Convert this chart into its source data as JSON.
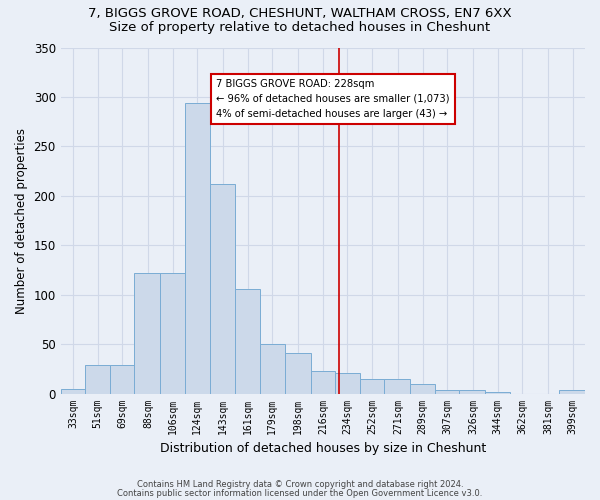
{
  "title1": "7, BIGGS GROVE ROAD, CHESHUNT, WALTHAM CROSS, EN7 6XX",
  "title2": "Size of property relative to detached houses in Cheshunt",
  "xlabel": "Distribution of detached houses by size in Cheshunt",
  "ylabel": "Number of detached properties",
  "bar_color": "#ccd9ea",
  "bar_edge_color": "#7aacd4",
  "bin_edges": [
    24,
    42,
    60,
    78,
    97,
    115,
    133,
    152,
    170,
    188,
    207,
    225,
    243,
    261,
    280,
    298,
    316,
    335,
    353,
    371,
    389,
    408
  ],
  "bar_heights": [
    5,
    29,
    29,
    122,
    122,
    294,
    212,
    106,
    50,
    41,
    23,
    21,
    15,
    15,
    10,
    4,
    4,
    2,
    0,
    0,
    4
  ],
  "tick_positions": [
    33,
    51,
    69,
    88,
    106,
    124,
    143,
    161,
    179,
    198,
    216,
    234,
    252,
    271,
    289,
    307,
    326,
    344,
    362,
    381,
    399
  ],
  "tick_labels": [
    "33sqm",
    "51sqm",
    "69sqm",
    "88sqm",
    "106sqm",
    "124sqm",
    "143sqm",
    "161sqm",
    "179sqm",
    "198sqm",
    "216sqm",
    "234sqm",
    "252sqm",
    "271sqm",
    "289sqm",
    "307sqm",
    "326sqm",
    "344sqm",
    "362sqm",
    "381sqm",
    "399sqm"
  ],
  "property_size": 228,
  "red_line_color": "#cc0000",
  "annotation_text": "7 BIGGS GROVE ROAD: 228sqm\n← 96% of detached houses are smaller (1,073)\n4% of semi-detached houses are larger (43) →",
  "annotation_box_color": "#ffffff",
  "annotation_edge_color": "#cc0000",
  "footer1": "Contains HM Land Registry data © Crown copyright and database right 2024.",
  "footer2": "Contains public sector information licensed under the Open Government Licence v3.0.",
  "ylim": [
    0,
    350
  ],
  "xlim": [
    24,
    408
  ],
  "bg_color": "#eaeff7",
  "grid_color": "#d0d8e8",
  "title_fontsize": 9.5,
  "subtitle_fontsize": 9.5,
  "tick_fontsize": 7,
  "ylabel_fontsize": 8.5,
  "xlabel_fontsize": 9
}
